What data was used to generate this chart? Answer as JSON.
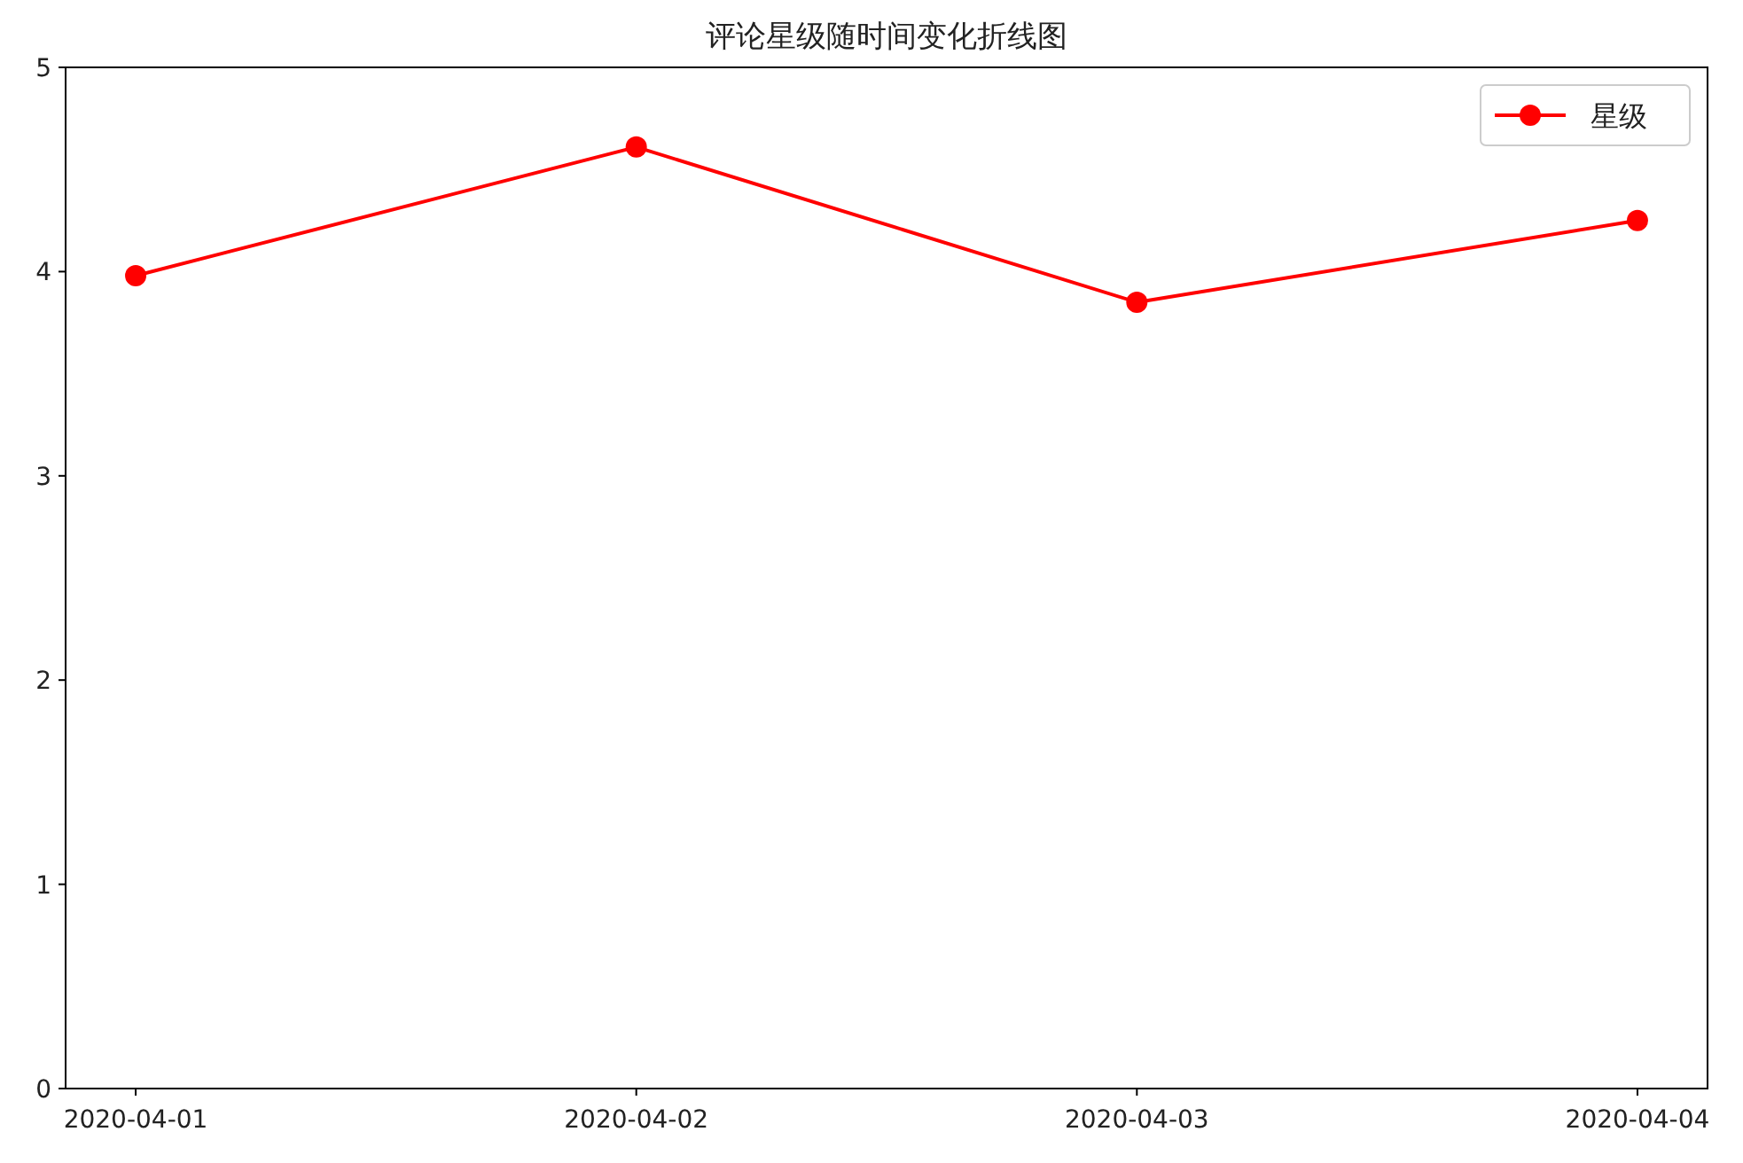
{
  "chart_data": {
    "type": "line",
    "title": "评论星级随时间变化折线图",
    "categories": [
      "2020-04-01",
      "2020-04-02",
      "2020-04-03",
      "2020-04-04"
    ],
    "series": [
      {
        "name": "星级",
        "color": "#ff0000",
        "values": [
          3.98,
          4.61,
          3.85,
          4.25
        ]
      }
    ],
    "ylim": [
      0,
      5
    ],
    "yticks": [
      0,
      1,
      2,
      3,
      4,
      5
    ],
    "marker": "circle",
    "line_style": "solid",
    "legend": "top right",
    "grid": false
  }
}
